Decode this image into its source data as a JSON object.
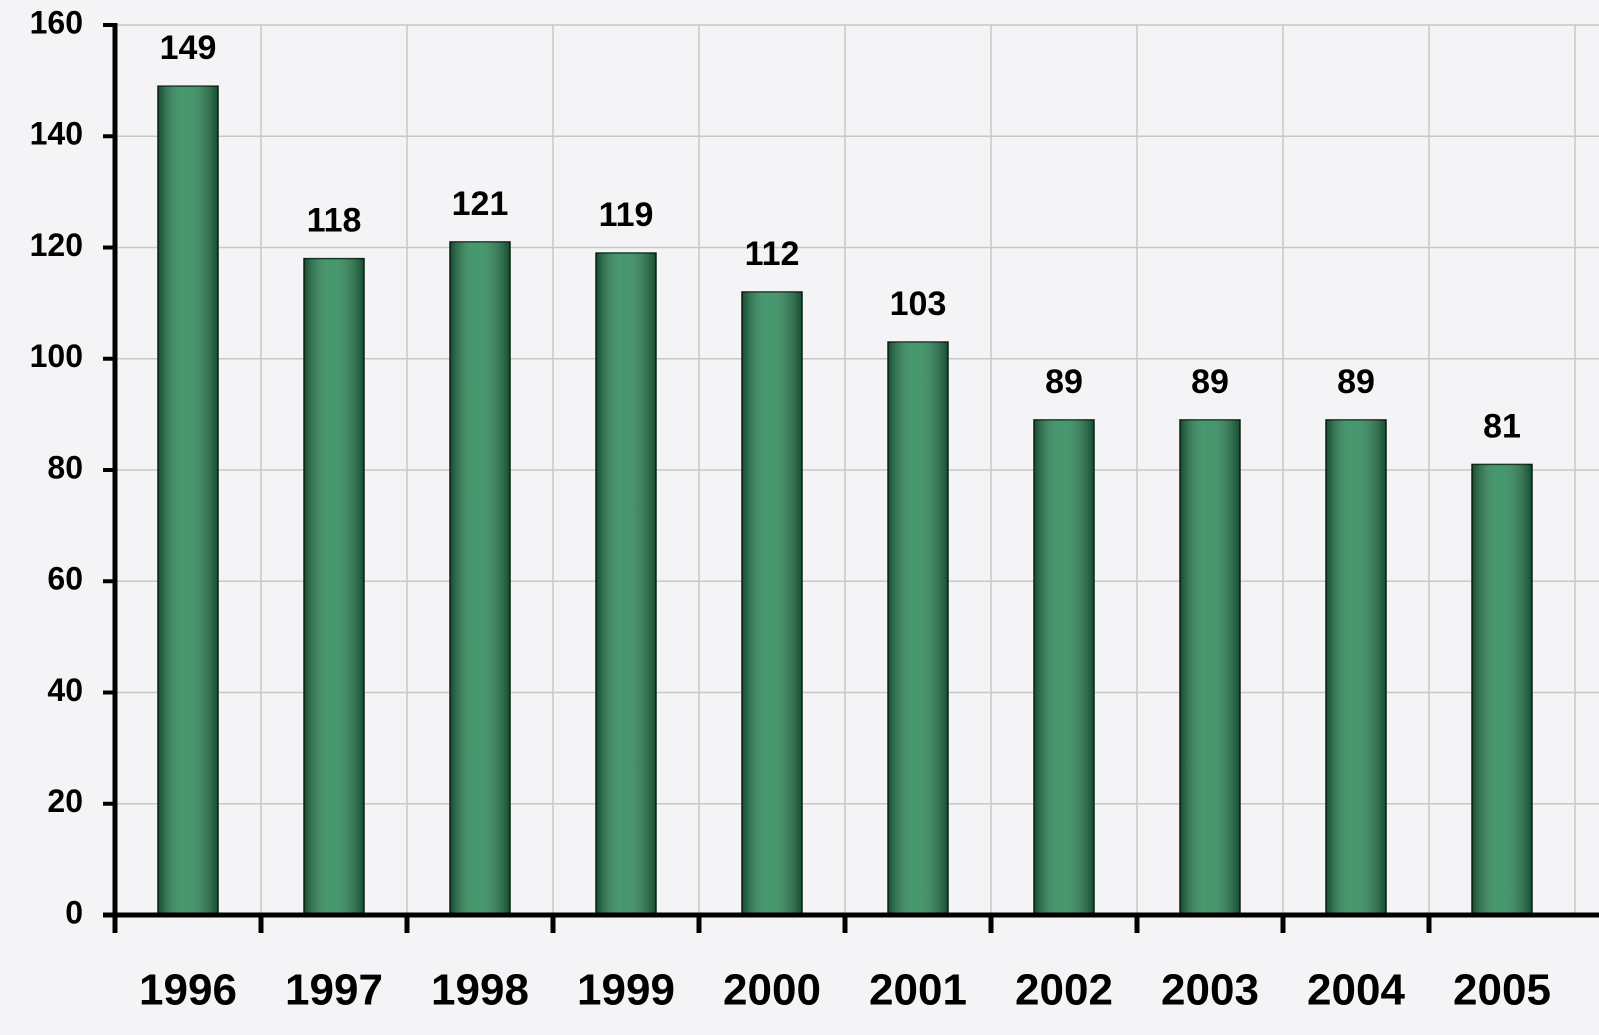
{
  "chart_data": {
    "type": "bar",
    "categories": [
      "1996",
      "1997",
      "1998",
      "1999",
      "2000",
      "2001",
      "2002",
      "2003",
      "2004",
      "2005"
    ],
    "values": [
      149,
      118,
      121,
      119,
      112,
      103,
      89,
      89,
      89,
      81
    ],
    "color": "#2a8a58",
    "ylim": [
      0,
      160
    ],
    "yticks": [
      0,
      20,
      40,
      60,
      80,
      100,
      120,
      140,
      160
    ],
    "grid": true
  }
}
